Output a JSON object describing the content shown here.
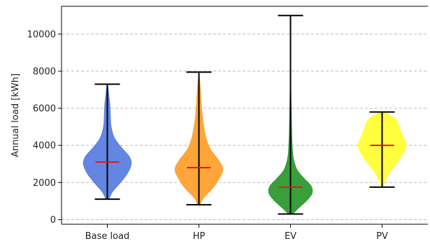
{
  "chart_data": {
    "type": "violin",
    "ylabel": "Annual load [kWh]",
    "xlabel": "",
    "ylim": [
      -250,
      11500
    ],
    "grid": "horizontal-dashed",
    "yticks": [
      0,
      2000,
      4000,
      6000,
      8000,
      10000
    ],
    "ytick_labels": [
      "0",
      "2000",
      "4000",
      "6000",
      "8000",
      "10000"
    ],
    "categories": [
      "Base load",
      "HP",
      "EV",
      "PV"
    ],
    "series": [
      {
        "category": "Base load",
        "color": "#5b7fe0",
        "min": 1100,
        "max": 7300,
        "mean": 3100,
        "density": [
          [
            1100,
            0.06
          ],
          [
            1500,
            0.2
          ],
          [
            2000,
            0.52
          ],
          [
            2500,
            0.8
          ],
          [
            3000,
            0.95
          ],
          [
            3400,
            0.87
          ],
          [
            3900,
            0.55
          ],
          [
            4400,
            0.28
          ],
          [
            5000,
            0.15
          ],
          [
            5600,
            0.12
          ],
          [
            6200,
            0.1
          ],
          [
            6800,
            0.05
          ],
          [
            7300,
            0.01
          ]
        ]
      },
      {
        "category": "HP",
        "color": "#ffa02e",
        "min": 800,
        "max": 7950,
        "mean": 2800,
        "density": [
          [
            800,
            0.04
          ],
          [
            1200,
            0.2
          ],
          [
            1700,
            0.55
          ],
          [
            2200,
            0.8
          ],
          [
            2700,
            0.95
          ],
          [
            3200,
            0.78
          ],
          [
            3800,
            0.45
          ],
          [
            4500,
            0.26
          ],
          [
            5300,
            0.16
          ],
          [
            6100,
            0.1
          ],
          [
            7000,
            0.06
          ],
          [
            7600,
            0.02
          ],
          [
            7950,
            0.0
          ]
        ]
      },
      {
        "category": "EV",
        "color": "#2e9a30",
        "min": 300,
        "max": 11000,
        "mean": 1750,
        "density": [
          [
            300,
            0.08
          ],
          [
            600,
            0.3
          ],
          [
            1000,
            0.62
          ],
          [
            1400,
            0.85
          ],
          [
            1800,
            0.82
          ],
          [
            2200,
            0.55
          ],
          [
            2700,
            0.25
          ],
          [
            3400,
            0.1
          ],
          [
            4500,
            0.05
          ],
          [
            5800,
            0.03
          ],
          [
            7000,
            0.015
          ],
          [
            9000,
            0.005
          ],
          [
            11000,
            0.0
          ]
        ]
      },
      {
        "category": "PV",
        "color": "#ffff33",
        "min": 1750,
        "max": 5800,
        "mean": 4000,
        "density": [
          [
            1750,
            0.03
          ],
          [
            2100,
            0.12
          ],
          [
            2600,
            0.32
          ],
          [
            3100,
            0.6
          ],
          [
            3600,
            0.85
          ],
          [
            4000,
            0.95
          ],
          [
            4400,
            0.85
          ],
          [
            4900,
            0.7
          ],
          [
            5300,
            0.6
          ],
          [
            5550,
            0.4
          ],
          [
            5800,
            0.1
          ]
        ]
      }
    ]
  }
}
